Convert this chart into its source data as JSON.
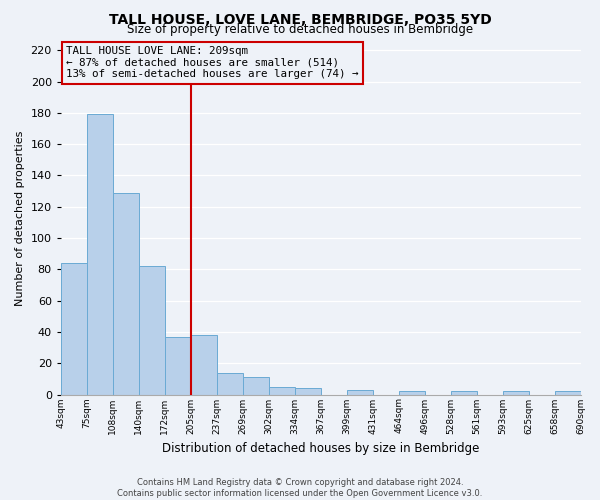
{
  "title": "TALL HOUSE, LOVE LANE, BEMBRIDGE, PO35 5YD",
  "subtitle": "Size of property relative to detached houses in Bembridge",
  "xlabel": "Distribution of detached houses by size in Bembridge",
  "ylabel": "Number of detached properties",
  "bin_labels": [
    "43sqm",
    "75sqm",
    "108sqm",
    "140sqm",
    "172sqm",
    "205sqm",
    "237sqm",
    "269sqm",
    "302sqm",
    "334sqm",
    "367sqm",
    "399sqm",
    "431sqm",
    "464sqm",
    "496sqm",
    "528sqm",
    "561sqm",
    "593sqm",
    "625sqm",
    "658sqm",
    "690sqm"
  ],
  "bar_values": [
    84,
    179,
    129,
    82,
    37,
    38,
    14,
    11,
    5,
    4,
    0,
    3,
    0,
    2,
    0,
    2,
    0,
    2,
    0,
    2
  ],
  "bar_color": "#b8d0ea",
  "bar_edge_color": "#6aaad4",
  "ylim": [
    0,
    225
  ],
  "yticks": [
    0,
    20,
    40,
    60,
    80,
    100,
    120,
    140,
    160,
    180,
    200,
    220
  ],
  "property_line_color": "#cc0000",
  "annotation_box_color": "#cc0000",
  "annotation_text_line1": "TALL HOUSE LOVE LANE: 209sqm",
  "annotation_text_line2": "← 87% of detached houses are smaller (514)",
  "annotation_text_line3": "13% of semi-detached houses are larger (74) →",
  "footer_line1": "Contains HM Land Registry data © Crown copyright and database right 2024.",
  "footer_line2": "Contains public sector information licensed under the Open Government Licence v3.0.",
  "background_color": "#eef2f8"
}
